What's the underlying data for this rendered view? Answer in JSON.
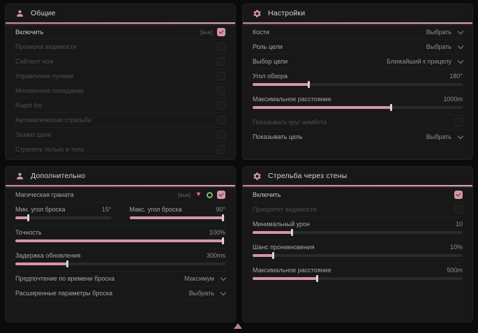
{
  "colors": {
    "accent": "#d596a1",
    "panel_bg": "#181818",
    "page_bg": "#0b0b0b",
    "green": "#85b468"
  },
  "panels": {
    "general": {
      "title": "Общие",
      "items": [
        {
          "label": "Включить",
          "badge": "[вык]",
          "checked": true
        },
        {
          "label": "Проверка видимости",
          "checked": false
        },
        {
          "label": "Сайлент нож",
          "checked": false
        },
        {
          "label": "Управление пулями",
          "checked": false
        },
        {
          "label": "Мгновенное попадание",
          "checked": false
        },
        {
          "label": "Rapid fire",
          "checked": false
        },
        {
          "label": "Автоматическая стрельба",
          "checked": false
        },
        {
          "label": "Захват цели",
          "checked": false
        },
        {
          "label": "Стрелять только в тело",
          "checked": false
        }
      ]
    },
    "settings": {
      "title": "Настройки",
      "items": [
        {
          "label": "Кости",
          "value": "Выбрать"
        },
        {
          "label": "Роль цели",
          "value": "Выбрать"
        },
        {
          "label": "Выбор цели",
          "value": "Ближайший к прицелу"
        },
        {
          "label": "Угол обзора",
          "value": "180°",
          "fill_pct": 27
        },
        {
          "label": "Максимальное расстояние",
          "value": "1000m",
          "fill_pct": 66
        },
        {
          "label": "Показывать круг аимбота",
          "checked": false
        },
        {
          "label": "Показывать цель",
          "value": "Выбрать"
        }
      ]
    },
    "additional": {
      "title": "Дополнительно",
      "items": [
        {
          "label": "Магическая граната",
          "badge": "[вык]",
          "checked": true
        },
        {
          "label": "Мин. угол броска",
          "value": "15°",
          "fill_pct": 14
        },
        {
          "label": "Макс. угол броска",
          "value": "90°",
          "fill_pct": 98
        },
        {
          "label": "Точность",
          "value": "100%",
          "fill_pct": 99
        },
        {
          "label": "Задержка обновления",
          "value": "300ms",
          "fill_pct": 25
        },
        {
          "label": "Предпочтение по времени броска",
          "value": "Максимум"
        },
        {
          "label": "Расширенные параметры броска",
          "value": "Выбрать"
        }
      ]
    },
    "wallshoot": {
      "title": "Стрельба через стены",
      "items": [
        {
          "label": "Включить",
          "checked": true
        },
        {
          "label": "Приоритет видимости",
          "checked": false
        },
        {
          "label": "Минимальный урон",
          "value": "10",
          "fill_pct": 19
        },
        {
          "label": "Шанс проникновения",
          "value": "10%",
          "fill_pct": 10
        },
        {
          "label": "Максимальное расстояние",
          "value": "500m",
          "fill_pct": 31
        }
      ]
    }
  }
}
